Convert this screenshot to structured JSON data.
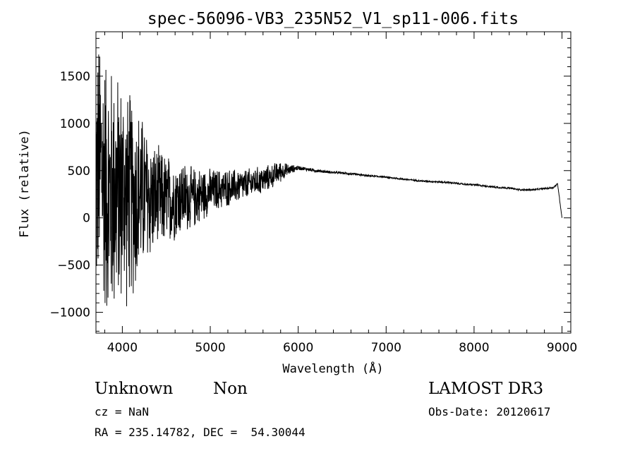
{
  "chart_data": {
    "type": "line",
    "title": "spec-56096-VB3_235N52_V1_sp11-006.fits",
    "xlabel": "Wavelength (Å)",
    "ylabel": "Flux (relative)",
    "xlim": [
      3700,
      9100
    ],
    "ylim": [
      -1220,
      1970
    ],
    "xticks": [
      4000,
      5000,
      6000,
      7000,
      8000,
      9000
    ],
    "yticks": [
      -1000,
      -500,
      0,
      500,
      1000,
      1500
    ],
    "grid": false,
    "series": [
      {
        "color": "#000000",
        "x": [
          3700,
          3750,
          3800,
          3850,
          3900,
          3950,
          4000,
          4050,
          4100,
          4150,
          4200,
          4250,
          4300,
          4400,
          4500,
          4600,
          4700,
          4800,
          4900,
          5000,
          5100,
          5200,
          5300,
          5400,
          5500,
          5600,
          5700,
          5750,
          5800,
          5850,
          5900,
          5950,
          6000,
          6100,
          6200,
          6300,
          6400,
          6500,
          6600,
          6700,
          6800,
          6900,
          7000,
          7100,
          7200,
          7300,
          7400,
          7500,
          7600,
          7700,
          7800,
          7900,
          8000,
          8100,
          8200,
          8300,
          8400,
          8500,
          8600,
          8700,
          8800,
          8900,
          8950,
          9000
        ],
        "y": [
          400,
          600,
          400,
          200,
          300,
          250,
          300,
          200,
          250,
          200,
          250,
          250,
          200,
          200,
          180,
          200,
          220,
          200,
          250,
          280,
          300,
          320,
          330,
          350,
          380,
          400,
          440,
          470,
          490,
          500,
          510,
          520,
          530,
          515,
          500,
          490,
          480,
          475,
          465,
          455,
          445,
          440,
          430,
          420,
          410,
          400,
          390,
          385,
          380,
          375,
          365,
          355,
          350,
          340,
          330,
          320,
          315,
          300,
          295,
          300,
          310,
          320,
          360,
          0
        ]
      }
    ],
    "noise_envelope": {
      "x": [
        3700,
        3800,
        3900,
        4000,
        4100,
        4200,
        4300,
        4400,
        4500,
        4600,
        4700,
        4800,
        4900,
        5000,
        5200,
        5400,
        5600,
        5700,
        5800,
        5900,
        6000,
        6500,
        7000,
        8000,
        9000
      ],
      "amplitude": [
        1500,
        1550,
        1500,
        1300,
        1200,
        1000,
        750,
        600,
        550,
        480,
        420,
        360,
        320,
        260,
        220,
        180,
        160,
        140,
        120,
        60,
        25,
        12,
        10,
        10,
        10
      ]
    }
  },
  "info": {
    "class": "Unknown",
    "subclass": "Non",
    "survey": "LAMOST DR3",
    "cz": "cz = NaN",
    "obs_date": "Obs-Date: 20120617",
    "radec": "RA = 235.14782, DEC =  54.30044"
  }
}
